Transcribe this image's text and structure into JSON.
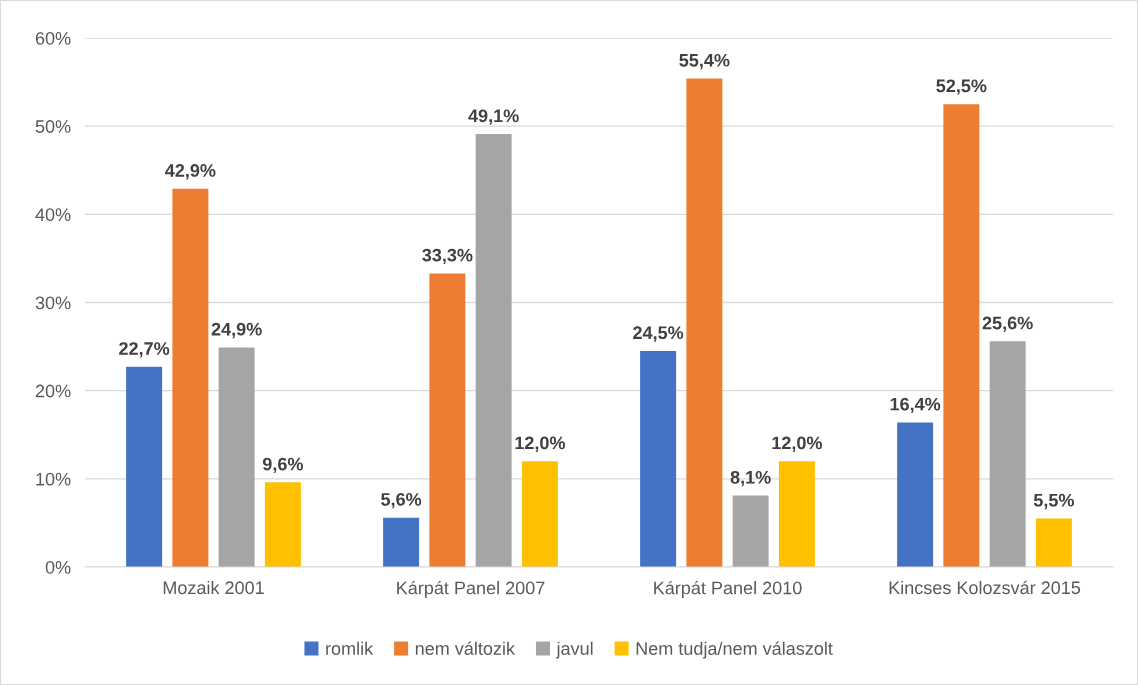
{
  "chart_data": {
    "type": "bar",
    "categories": [
      "Mozaik 2001",
      "Kárpát Panel 2007",
      "Kárpát Panel 2010",
      "Kincses Kolozsvár 2015"
    ],
    "series": [
      {
        "name": "romlik",
        "color": "#4472c4",
        "values": [
          22.7,
          5.6,
          24.5,
          16.4
        ],
        "value_labels": [
          "22,7%",
          "5,6%",
          "24,5%",
          "16,4%"
        ]
      },
      {
        "name": "nem változik",
        "color": "#ed7d31",
        "values": [
          42.9,
          33.3,
          55.4,
          52.5
        ],
        "value_labels": [
          "42,9%",
          "33,3%",
          "55,4%",
          "52,5%"
        ]
      },
      {
        "name": "javul",
        "color": "#a5a5a5",
        "values": [
          24.9,
          49.1,
          8.1,
          25.6
        ],
        "value_labels": [
          "24,9%",
          "49,1%",
          "8,1%",
          "25,6%"
        ]
      },
      {
        "name": "Nem tudja/nem válaszolt",
        "color": "#ffc000",
        "values": [
          9.6,
          12.0,
          12.0,
          5.5
        ],
        "value_labels": [
          "9,6%",
          "12,0%",
          "12,0%",
          "5,5%"
        ]
      }
    ],
    "ylim": [
      0,
      60
    ],
    "yticks": [
      {
        "value": 0,
        "label": "0%"
      },
      {
        "value": 10,
        "label": "10%"
      },
      {
        "value": 20,
        "label": "20%"
      },
      {
        "value": 30,
        "label": "30%"
      },
      {
        "value": 40,
        "label": "40%"
      },
      {
        "value": 50,
        "label": "50%"
      },
      {
        "value": 60,
        "label": "60%"
      }
    ],
    "grid": "y",
    "legend": "bottom"
  }
}
